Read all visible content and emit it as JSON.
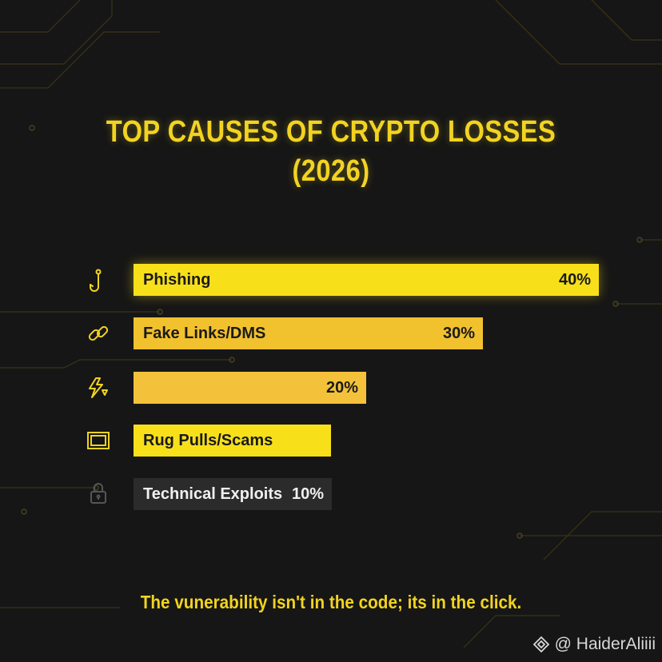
{
  "title_line1": "TOP CAUSES OF CRYPTO LOSSES",
  "title_line2": "(2026)",
  "footer": "The vunerability isn't in the code; its in the click.",
  "watermark": "@ HaiderAliiii",
  "colors": {
    "background": "#161616",
    "yellow_bright": "#f7e01a",
    "yellow_mid": "#f2c12e",
    "yellow_soft": "#f4c23a",
    "dark_bar": "#2b2b2b",
    "circuit": "#3a3418"
  },
  "chart_data": {
    "type": "bar",
    "orientation": "horizontal",
    "title": "TOP CAUSES OF CRYPTO LOSSES (2026)",
    "categories": [
      "Phishing",
      "Fake Links/DMS",
      "",
      "Rug Pulls/Scams",
      "Technical Exploits"
    ],
    "value_labels": [
      "40%",
      "30%",
      "20%",
      "",
      "10%"
    ],
    "values": [
      40,
      30,
      20,
      17,
      10
    ],
    "icons": [
      "hook-icon",
      "link-icon",
      "lightning-icon",
      "frame-icon",
      "lock-icon"
    ],
    "bar_colors": [
      "#f7e01a",
      "#f2c12e",
      "#f4c23a",
      "#f7e01a",
      "#2b2b2b"
    ],
    "label_colors": [
      "#1a1a1a",
      "#1a1a1a",
      "#1a1a1a",
      "#1a1a1a",
      "#f0f0f0"
    ],
    "xlim": [
      0,
      40
    ]
  }
}
